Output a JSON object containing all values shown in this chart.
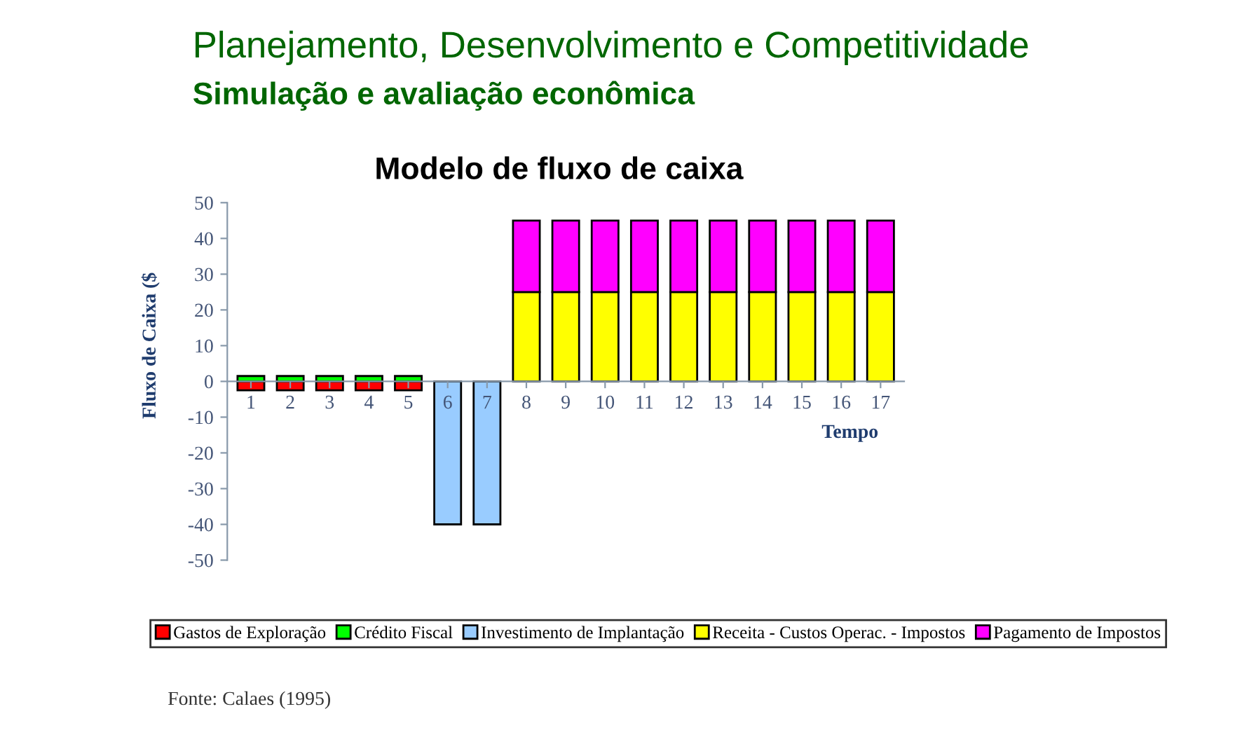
{
  "chart_data": {
    "type": "bar",
    "stacked": true,
    "title": "Planejamento, Desenvolvimento e Competitividade",
    "subtitle": "Simulação e avaliação econômica",
    "xlabel": "Tempo",
    "ylabel": "Fluxo de Caixa ($",
    "annotations": [
      "Modelo de fluxo de caixa",
      "Fonte: Calaes (1995)"
    ],
    "categories": [
      "1",
      "2",
      "3",
      "4",
      "5",
      "6",
      "7",
      "8",
      "9",
      "10",
      "11",
      "12",
      "13",
      "14",
      "15",
      "16",
      "17"
    ],
    "series": [
      {
        "name": "Gastos de Exploração",
        "color": "#ff0000",
        "values": [
          -2.5,
          -2.5,
          -2.5,
          -2.5,
          -2.5,
          null,
          null,
          null,
          null,
          null,
          null,
          null,
          null,
          null,
          null,
          null,
          null
        ]
      },
      {
        "name": "Crédito Fiscal",
        "color": "#00ff00",
        "values": [
          1.5,
          1.5,
          1.5,
          1.5,
          1.5,
          null,
          null,
          null,
          null,
          null,
          null,
          null,
          null,
          null,
          null,
          null,
          null
        ]
      },
      {
        "name": "Investimento de Implantação",
        "color": "#99ccff",
        "values": [
          null,
          null,
          null,
          null,
          null,
          -40,
          -40,
          null,
          null,
          null,
          null,
          null,
          null,
          null,
          null,
          null,
          null
        ]
      },
      {
        "name": "Receita - Custos Operac. - Impostos",
        "color": "#ffff00",
        "values": [
          null,
          null,
          null,
          null,
          null,
          null,
          null,
          25,
          25,
          25,
          25,
          25,
          25,
          25,
          25,
          25,
          25
        ]
      },
      {
        "name": "Pagamento de Impostos",
        "color": "#ff00ff",
        "values": [
          null,
          null,
          null,
          null,
          null,
          null,
          null,
          20,
          20,
          20,
          20,
          20,
          20,
          20,
          20,
          20,
          20
        ]
      }
    ],
    "ylim": [
      -50,
      50
    ],
    "yticks": [
      -50,
      -40,
      -30,
      -20,
      -10,
      0,
      10,
      20,
      30,
      40,
      50
    ],
    "grid": false,
    "legend": "bottom"
  }
}
